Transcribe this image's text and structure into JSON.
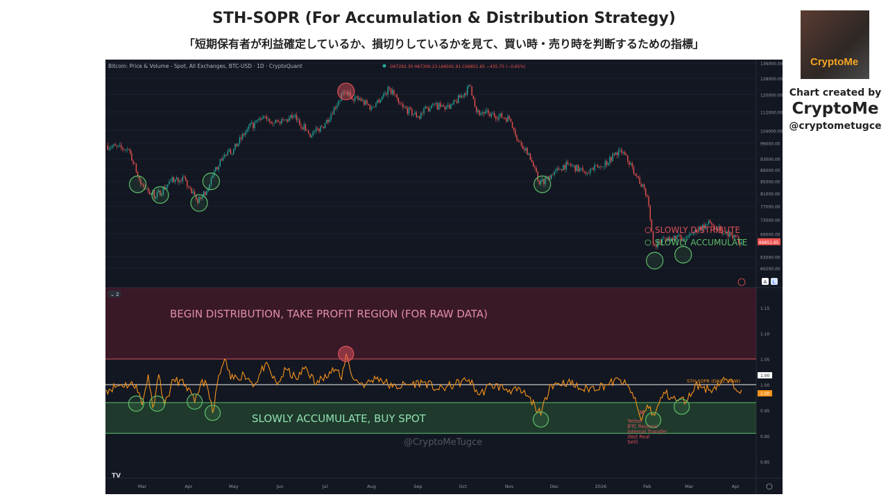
{
  "title": "STH-SOPR (For Accumulation & Distribution Strategy)",
  "subtitle": "「短期保有者が利益確定しているか、損切りしているかを見て、買い時・売り時を判断するための指標」",
  "credit": {
    "line1": "Chart created by",
    "name": "CryptoMe",
    "handle": "@cryptometugce",
    "logo_text": "CryptoMe"
  },
  "chart_data": [
    {
      "type": "candlestick",
      "legend": "Bitcoin: Price & Volume - Spot, All Exchanges, BTC-USD · 1D · CryptoQuant",
      "ohlc": "O67292.30 H67300.23 L66591.91 C66851.65 −435.75 (−0.65%)",
      "last_price": "66851.65",
      "y_scale": "log",
      "y_ticks": [
        "136000.00",
        "128000.00",
        "120000.00",
        "112000.00",
        "104000.00",
        "99000.00",
        "93000.00",
        "89000.00",
        "85000.00",
        "81000.00",
        "77000.00",
        "73000.00",
        "69000.00",
        "63000.00",
        "60200.00"
      ],
      "close_points": [
        [
          "2025-02-05",
          98000
        ],
        [
          "2025-02-20",
          96400
        ],
        [
          "2025-02-28",
          84000
        ],
        [
          "2025-03-10",
          80000
        ],
        [
          "2025-03-20",
          85000
        ],
        [
          "2025-03-28",
          86500
        ],
        [
          "2025-04-07",
          78000
        ],
        [
          "2025-04-15",
          84000
        ],
        [
          "2025-04-22",
          92800
        ],
        [
          "2025-05-01",
          96400
        ],
        [
          "2025-05-10",
          104500
        ],
        [
          "2025-05-22",
          110000
        ],
        [
          "2025-06-01",
          107000
        ],
        [
          "2025-06-10",
          110000
        ],
        [
          "2025-06-22",
          102000
        ],
        [
          "2025-07-01",
          107000
        ],
        [
          "2025-07-10",
          117000
        ],
        [
          "2025-07-14",
          121000
        ],
        [
          "2025-07-25",
          117000
        ],
        [
          "2025-08-01",
          114000
        ],
        [
          "2025-08-13",
          123000
        ],
        [
          "2025-08-22",
          114000
        ],
        [
          "2025-09-01",
          110000
        ],
        [
          "2025-09-10",
          115000
        ],
        [
          "2025-09-22",
          113500
        ],
        [
          "2025-10-06",
          124000
        ],
        [
          "2025-10-10",
          112000
        ],
        [
          "2025-10-20",
          111000
        ],
        [
          "2025-11-01",
          109000
        ],
        [
          "2025-11-05",
          102000
        ],
        [
          "2025-11-14",
          95000
        ],
        [
          "2025-11-21",
          84000
        ],
        [
          "2025-12-01",
          88500
        ],
        [
          "2025-12-10",
          91000
        ],
        [
          "2025-12-20",
          88500
        ],
        [
          "2026-01-01",
          90000
        ],
        [
          "2026-01-14",
          96400
        ],
        [
          "2026-01-22",
          90000
        ],
        [
          "2026-02-01",
          80000
        ],
        [
          "2026-02-05",
          66000
        ],
        [
          "2026-02-15",
          68000
        ],
        [
          "2026-02-25",
          67500
        ],
        [
          "2026-03-05",
          70000
        ],
        [
          "2026-03-15",
          72000
        ],
        [
          "2026-03-25",
          69000
        ],
        [
          "2026-04-05",
          66851.65
        ]
      ],
      "markers": [
        {
          "date": "2025-02-26",
          "value": 84000,
          "color": "green"
        },
        {
          "date": "2025-03-13",
          "value": 80500,
          "color": "green"
        },
        {
          "date": "2025-04-08",
          "value": 78000,
          "color": "green"
        },
        {
          "date": "2025-04-16",
          "value": 85000,
          "color": "green"
        },
        {
          "date": "2025-07-15",
          "value": 121500,
          "color": "red"
        },
        {
          "date": "2025-11-23",
          "value": 84000,
          "color": "green"
        },
        {
          "date": "2026-02-06",
          "value": 62000,
          "color": "green"
        },
        {
          "date": "2026-02-25",
          "value": 63500,
          "color": "green"
        }
      ],
      "legend_entries": [
        {
          "label": "SLOWLY DISTRIBUTE",
          "color": "#e0525a"
        },
        {
          "label": "SLOWLY ACCUMULATE",
          "color": "#5fbf6a"
        }
      ],
      "buttons": {
        "auto": "A",
        "log": "L"
      }
    },
    {
      "type": "line",
      "series_name": "STH-SOPR (DAILY, RAW)",
      "pane_badge": "2",
      "y_ticks": [
        "1.15",
        "1.10",
        "1.05",
        "1.00",
        "0.95",
        "0.90",
        "0.85"
      ],
      "ylim": [
        0.825,
        1.19
      ],
      "current": "1.00",
      "baseline": "1.00",
      "distribution_band": {
        "from": 1.05,
        "label": "BEGIN DISTRIBUTION, TAKE PROFIT REGION (FOR RAW DATA)"
      },
      "accumulation_band": {
        "from": 0.905,
        "to": 0.965,
        "label": "SLOWLY ACCUMULATE, BUY SPOT"
      },
      "points": [
        [
          "2025-02-05",
          0.99
        ],
        [
          "2025-02-15",
          1.0
        ],
        [
          "2025-02-25",
          1.0
        ],
        [
          "2025-03-01",
          0.96
        ],
        [
          "2025-03-05",
          1.02
        ],
        [
          "2025-03-08",
          0.955
        ],
        [
          "2025-03-12",
          1.02
        ],
        [
          "2025-03-16",
          0.96
        ],
        [
          "2025-03-22",
          1.01
        ],
        [
          "2025-03-30",
          1.0
        ],
        [
          "2025-04-05",
          0.965
        ],
        [
          "2025-04-10",
          1.01
        ],
        [
          "2025-04-14",
          0.99
        ],
        [
          "2025-04-17",
          0.945
        ],
        [
          "2025-04-20",
          1.0
        ],
        [
          "2025-04-25",
          1.05
        ],
        [
          "2025-04-29",
          1.01
        ],
        [
          "2025-05-08",
          1.02
        ],
        [
          "2025-05-15",
          1.0
        ],
        [
          "2025-05-22",
          1.04
        ],
        [
          "2025-05-30",
          1.0
        ],
        [
          "2025-06-05",
          1.03
        ],
        [
          "2025-06-12",
          1.01
        ],
        [
          "2025-06-18",
          1.035
        ],
        [
          "2025-06-25",
          1.0
        ],
        [
          "2025-07-01",
          1.02
        ],
        [
          "2025-07-08",
          1.03
        ],
        [
          "2025-07-12",
          1.01
        ],
        [
          "2025-07-15",
          1.06
        ],
        [
          "2025-07-20",
          1.01
        ],
        [
          "2025-07-28",
          1.0
        ],
        [
          "2025-08-05",
          1.015
        ],
        [
          "2025-08-15",
          0.995
        ],
        [
          "2025-08-25",
          1.0
        ],
        [
          "2025-09-05",
          1.005
        ],
        [
          "2025-09-15",
          0.99
        ],
        [
          "2025-09-25",
          1.0
        ],
        [
          "2025-10-05",
          1.01
        ],
        [
          "2025-10-12",
          0.98
        ],
        [
          "2025-10-20",
          1.0
        ],
        [
          "2025-11-01",
          0.99
        ],
        [
          "2025-11-10",
          0.985
        ],
        [
          "2025-11-18",
          0.96
        ],
        [
          "2025-11-22",
          0.94
        ],
        [
          "2025-11-28",
          1.0
        ],
        [
          "2025-12-10",
          1.005
        ],
        [
          "2025-12-20",
          0.99
        ],
        [
          "2026-01-05",
          1.0
        ],
        [
          "2026-01-14",
          1.01
        ],
        [
          "2026-01-22",
          0.985
        ],
        [
          "2026-01-28",
          0.93
        ],
        [
          "2026-02-01",
          0.96
        ],
        [
          "2026-02-06",
          0.94
        ],
        [
          "2026-02-12",
          0.985
        ],
        [
          "2026-02-20",
          0.97
        ],
        [
          "2026-02-28",
          0.97
        ],
        [
          "2026-03-05",
          1.0
        ],
        [
          "2026-03-15",
          0.99
        ],
        [
          "2026-03-25",
          1.01
        ],
        [
          "2026-04-05",
          0.99
        ]
      ],
      "markers": [
        {
          "date": "2025-02-25",
          "value": 0.963,
          "color": "green"
        },
        {
          "date": "2025-03-11",
          "value": 0.963,
          "color": "green"
        },
        {
          "date": "2025-04-05",
          "value": 0.967,
          "color": "green"
        },
        {
          "date": "2025-04-17",
          "value": 0.945,
          "color": "green"
        },
        {
          "date": "2025-07-15",
          "value": 1.06,
          "color": "red"
        },
        {
          "date": "2025-11-22",
          "value": 0.932,
          "color": "green"
        },
        {
          "date": "2026-02-05",
          "value": 0.931,
          "color": "green"
        },
        {
          "date": "2026-02-24",
          "value": 0.957,
          "color": "green"
        }
      ],
      "annotation": {
        "date": "2026-01-28",
        "value": 0.93,
        "lines": [
          "Tether",
          "BTC Reserve",
          "Internal Transfer",
          "(Not Real",
          "Sell)"
        ]
      },
      "watermark": "@CryptoMeTugce"
    }
  ],
  "x_ticks": [
    "Mar",
    "Apr",
    "May",
    "Jun",
    "Jul",
    "Aug",
    "Sep",
    "Oct",
    "Nov",
    "Dec",
    "2026",
    "Feb",
    "Mar",
    "Apr"
  ],
  "x_tick_dates": [
    "2025-03-01",
    "2025-04-01",
    "2025-05-01",
    "2025-06-01",
    "2025-07-01",
    "2025-08-01",
    "2025-09-01",
    "2025-10-01",
    "2025-11-01",
    "2025-12-01",
    "2026-01-01",
    "2026-02-01",
    "2026-03-01",
    "2026-04-01"
  ],
  "colors": {
    "up": "#26a69a",
    "down": "#ef5350",
    "sopr": "#f7931a",
    "green": "#5fbf6a",
    "red": "#e0525a"
  }
}
